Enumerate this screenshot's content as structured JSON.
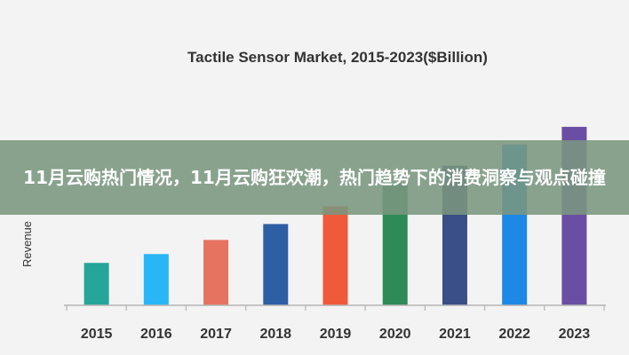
{
  "banner": {
    "text": "11月云购热门情况，11月云购狂欢潮，热门趋势下的消费洞察与观点碰撞"
  },
  "chart_data": {
    "type": "bar",
    "title": "Tactile Sensor Market, 2015-2023($Billion)",
    "xlabel": "",
    "ylabel": "Revenue",
    "categories": [
      "2015",
      "2016",
      "2017",
      "2018",
      "2019",
      "2020",
      "2021",
      "2022",
      "2023"
    ],
    "values": [
      2.4,
      2.9,
      3.7,
      4.6,
      5.6,
      6.9,
      7.9,
      9.1,
      10.1
    ],
    "ylim": [
      0,
      11
    ],
    "grid": false,
    "legend": "none",
    "colors": [
      "#26a69a",
      "#29b6f6",
      "#e57360",
      "#2e5fa5",
      "#ef5b3a",
      "#2e8b57",
      "#3a4f86",
      "#1e88e5",
      "#6a4ea3"
    ]
  }
}
